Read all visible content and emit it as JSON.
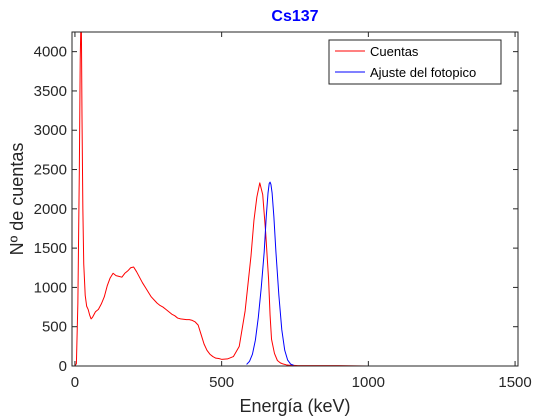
{
  "chart_data": {
    "type": "line",
    "title": "Cs137",
    "xlabel": "Energía (keV)",
    "ylabel": "Nº de cuentas",
    "xlim": [
      -10,
      1510
    ],
    "ylim": [
      0,
      4250
    ],
    "xticks": [
      0,
      500,
      1000,
      1500
    ],
    "yticks": [
      0,
      500,
      1000,
      1500,
      2000,
      2500,
      3000,
      3500,
      4000
    ],
    "grid": false,
    "legend_position": "top-right",
    "colors": {
      "axis": "#262626",
      "title": "#0000ff"
    },
    "series": [
      {
        "name": "Cuentas",
        "color": "#ff0000",
        "x": [
          0,
          5,
          10,
          15,
          18,
          20,
          22,
          24,
          27,
          30,
          35,
          40,
          45,
          50,
          55,
          60,
          70,
          80,
          90,
          100,
          110,
          120,
          130,
          140,
          150,
          160,
          170,
          180,
          190,
          200,
          210,
          220,
          230,
          240,
          250,
          260,
          270,
          280,
          290,
          300,
          310,
          320,
          330,
          340,
          350,
          360,
          370,
          380,
          390,
          400,
          410,
          420,
          430,
          440,
          450,
          460,
          470,
          480,
          490,
          500,
          520,
          540,
          560,
          580,
          600,
          610,
          620,
          630,
          640,
          650,
          660,
          665,
          670,
          680,
          690,
          700,
          710,
          720,
          730,
          740,
          760,
          800,
          900,
          1000,
          1100,
          1200,
          1300,
          1400,
          1500
        ],
        "y": [
          0,
          30,
          800,
          2500,
          3900,
          4300,
          4300,
          3200,
          2000,
          1300,
          900,
          760,
          720,
          650,
          600,
          620,
          690,
          720,
          790,
          880,
          1020,
          1120,
          1180,
          1150,
          1140,
          1130,
          1180,
          1210,
          1250,
          1260,
          1200,
          1130,
          1060,
          1000,
          940,
          880,
          840,
          800,
          770,
          750,
          720,
          690,
          660,
          640,
          610,
          600,
          595,
          590,
          590,
          580,
          560,
          520,
          400,
          280,
          200,
          150,
          120,
          100,
          95,
          85,
          90,
          120,
          250,
          700,
          1400,
          1850,
          2150,
          2330,
          2180,
          1700,
          1100,
          650,
          340,
          160,
          70,
          40,
          25,
          15,
          10,
          10,
          5,
          5,
          5,
          0,
          0,
          0,
          0,
          0,
          0
        ]
      },
      {
        "name": "Ajuste del fotopico",
        "color": "#0000ff",
        "x": [
          585,
          595,
          605,
          615,
          625,
          635,
          645,
          652,
          658,
          662,
          665,
          668,
          672,
          678,
          685,
          695,
          705,
          715,
          725,
          735,
          745
        ],
        "y": [
          20,
          60,
          150,
          330,
          620,
          1000,
          1450,
          1900,
          2200,
          2320,
          2340,
          2310,
          2200,
          1900,
          1450,
          900,
          460,
          200,
          75,
          25,
          10
        ]
      }
    ]
  }
}
